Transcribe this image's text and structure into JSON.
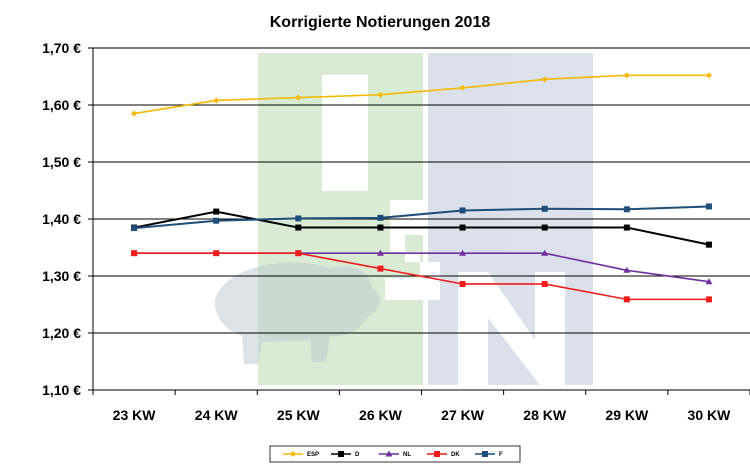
{
  "chart_data": {
    "type": "line",
    "title": "Korrigierte Notierungen 2018",
    "categories": [
      "23 KW",
      "24 KW",
      "25 KW",
      "26 KW",
      "27 KW",
      "28 KW",
      "29 KW",
      "30 KW"
    ],
    "ylim": [
      1.1,
      1.7
    ],
    "yticks": [
      1.1,
      1.2,
      1.3,
      1.4,
      1.5,
      1.6,
      1.7
    ],
    "ytick_labels": [
      "1,10 €",
      "1,20 €",
      "1,30 €",
      "1,40 €",
      "1,50 €",
      "1,60 €",
      "1,70 €"
    ],
    "grid": true,
    "legend_position": "bottom",
    "background_watermark": "ISN",
    "series": [
      {
        "name": "ESP",
        "color": "#f5b800",
        "marker": "diamond",
        "values": [
          1.585,
          1.608,
          1.613,
          1.618,
          1.63,
          1.645,
          1.652,
          1.652
        ]
      },
      {
        "name": "D",
        "color": "#000000",
        "marker": "square",
        "values": [
          1.385,
          1.413,
          1.385,
          1.385,
          1.385,
          1.385,
          1.385,
          1.355
        ]
      },
      {
        "name": "NL",
        "color": "#7030a0",
        "marker": "triangle",
        "values": [
          1.34,
          1.34,
          1.34,
          1.34,
          1.34,
          1.34,
          1.31,
          1.29
        ]
      },
      {
        "name": "DK",
        "color": "#ee1c1c",
        "marker": "square",
        "values": [
          1.34,
          1.34,
          1.34,
          1.313,
          1.286,
          1.286,
          1.259,
          1.259
        ]
      },
      {
        "name": "F",
        "color": "#1f4e79",
        "marker": "square",
        "values": [
          1.384,
          1.397,
          1.401,
          1.402,
          1.415,
          1.418,
          1.417,
          1.422
        ]
      }
    ]
  }
}
